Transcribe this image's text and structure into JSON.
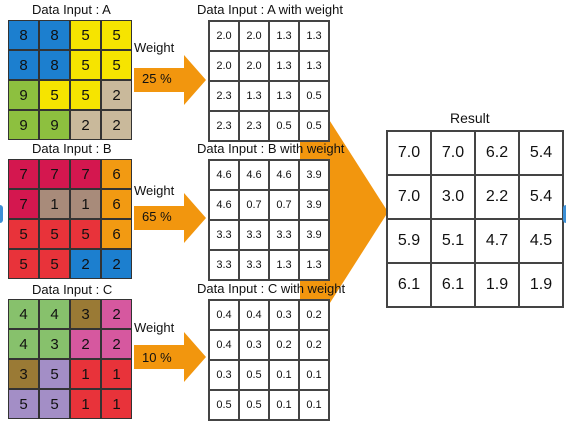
{
  "colors": {
    "blue": "#1c7fcf",
    "yellow": "#f6e400",
    "green": "#8dc03f",
    "tan": "#c9b99b",
    "crimson": "#d4174f",
    "brown": "#a88b7a",
    "orange": "#f29a12",
    "red": "#e8333a",
    "lightgreen": "#87c16c",
    "olive": "#9a7a35",
    "pink": "#d6589f",
    "purple": "#a38ec6",
    "arrow": "#f2960e"
  },
  "inputs": [
    {
      "title": "Data Input : A",
      "values": [
        [
          "8",
          "8",
          "5",
          "5"
        ],
        [
          "8",
          "8",
          "5",
          "5"
        ],
        [
          "9",
          "5",
          "5",
          "2"
        ],
        [
          "9",
          "9",
          "2",
          "2"
        ]
      ],
      "colors": [
        [
          "blue",
          "blue",
          "yellow",
          "yellow"
        ],
        [
          "blue",
          "blue",
          "yellow",
          "yellow"
        ],
        [
          "green",
          "yellow",
          "yellow",
          "tan"
        ],
        [
          "green",
          "green",
          "tan",
          "tan"
        ]
      ]
    },
    {
      "title": "Data Input : B",
      "values": [
        [
          "7",
          "7",
          "7",
          "6"
        ],
        [
          "7",
          "1",
          "1",
          "6"
        ],
        [
          "5",
          "5",
          "5",
          "6"
        ],
        [
          "5",
          "5",
          "2",
          "2"
        ]
      ],
      "colors": [
        [
          "crimson",
          "crimson",
          "crimson",
          "orange"
        ],
        [
          "crimson",
          "brown",
          "brown",
          "orange"
        ],
        [
          "red",
          "red",
          "red",
          "orange"
        ],
        [
          "red",
          "red",
          "blue",
          "blue"
        ]
      ]
    },
    {
      "title": "Data Input : C",
      "values": [
        [
          "4",
          "4",
          "3",
          "2"
        ],
        [
          "4",
          "3",
          "2",
          "2"
        ],
        [
          "3",
          "5",
          "1",
          "1"
        ],
        [
          "5",
          "5",
          "1",
          "1"
        ]
      ],
      "colors": [
        [
          "lightgreen",
          "lightgreen",
          "olive",
          "pink"
        ],
        [
          "lightgreen",
          "lightgreen",
          "pink",
          "pink"
        ],
        [
          "olive",
          "purple",
          "red",
          "red"
        ],
        [
          "purple",
          "purple",
          "red",
          "red"
        ]
      ]
    }
  ],
  "weights": [
    {
      "label": "Weight",
      "percent": "25 %"
    },
    {
      "label": "Weight",
      "percent": "65 %"
    },
    {
      "label": "Weight",
      "percent": "10 %"
    }
  ],
  "weighted": [
    {
      "title": "Data Input : A with weight",
      "values": [
        [
          "2.0",
          "2.0",
          "1.3",
          "1.3"
        ],
        [
          "2.0",
          "2.0",
          "1.3",
          "1.3"
        ],
        [
          "2.3",
          "1.3",
          "1.3",
          "0.5"
        ],
        [
          "2.3",
          "2.3",
          "0.5",
          "0.5"
        ]
      ]
    },
    {
      "title": "Data Input : B with weight",
      "values": [
        [
          "4.6",
          "4.6",
          "4.6",
          "3.9"
        ],
        [
          "4.6",
          "0.7",
          "0.7",
          "3.9"
        ],
        [
          "3.3",
          "3.3",
          "3.3",
          "3.9"
        ],
        [
          "3.3",
          "3.3",
          "1.3",
          "1.3"
        ]
      ]
    },
    {
      "title": "Data Input : C with weight",
      "values": [
        [
          "0.4",
          "0.4",
          "0.3",
          "0.2"
        ],
        [
          "0.4",
          "0.3",
          "0.2",
          "0.2"
        ],
        [
          "0.3",
          "0.5",
          "0.1",
          "0.1"
        ],
        [
          "0.5",
          "0.5",
          "0.1",
          "0.1"
        ]
      ]
    }
  ],
  "result": {
    "title": "Result",
    "values": [
      [
        "7.0",
        "7.0",
        "6.2",
        "5.4"
      ],
      [
        "7.0",
        "3.0",
        "2.2",
        "5.4"
      ],
      [
        "5.9",
        "5.1",
        "4.7",
        "4.5"
      ],
      [
        "6.1",
        "6.1",
        "1.9",
        "1.9"
      ]
    ]
  }
}
